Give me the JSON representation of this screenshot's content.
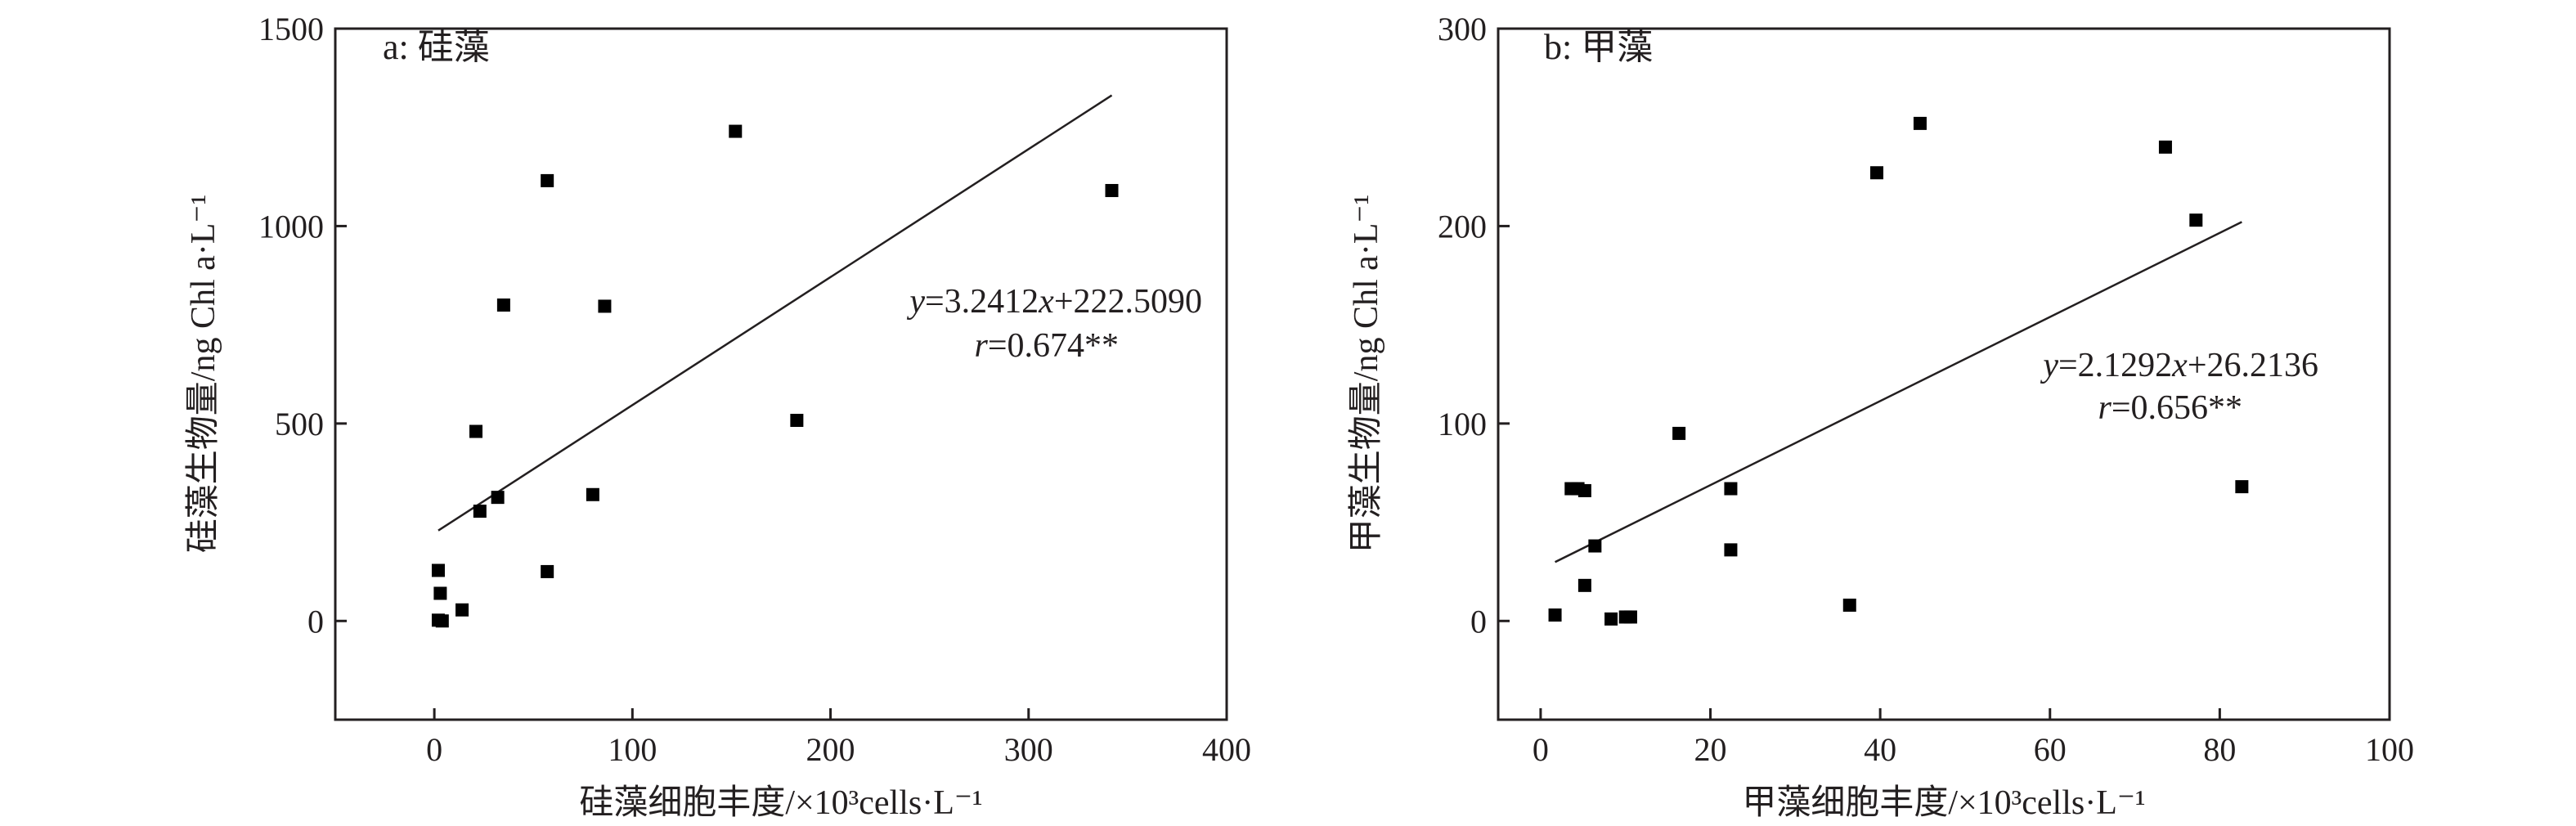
{
  "chart_data": [
    {
      "type": "scatter",
      "title": "a: 硅藻",
      "xlabel": "硅藻细胞丰度/×10³cells·L⁻¹",
      "ylabel": "硅藻生物量/ng Chl a·L⁻¹",
      "xlim": [
        -50,
        400
      ],
      "ylim": [
        -250,
        1500
      ],
      "xticks": [
        0,
        100,
        200,
        300,
        400
      ],
      "yticks": [
        0,
        500,
        1000,
        1500
      ],
      "grid": false,
      "points": [
        {
          "x": 2,
          "y": 128
        },
        {
          "x": 3,
          "y": 70
        },
        {
          "x": 2,
          "y": 2
        },
        {
          "x": 4,
          "y": 0
        },
        {
          "x": 14,
          "y": 28
        },
        {
          "x": 21,
          "y": 480
        },
        {
          "x": 23,
          "y": 278
        },
        {
          "x": 32,
          "y": 313
        },
        {
          "x": 35,
          "y": 800
        },
        {
          "x": 57,
          "y": 125
        },
        {
          "x": 57,
          "y": 1115
        },
        {
          "x": 80,
          "y": 320
        },
        {
          "x": 86,
          "y": 797
        },
        {
          "x": 152,
          "y": 1240
        },
        {
          "x": 183,
          "y": 508
        },
        {
          "x": 342,
          "y": 1090
        }
      ],
      "fit": {
        "slope": 3.2412,
        "intercept": 222.509,
        "x_range": [
          2,
          342
        ]
      },
      "annotations": [
        "y=3.2412x+222.5090",
        "r=0.674**"
      ]
    },
    {
      "type": "scatter",
      "title": "b: 甲藻",
      "xlabel": "甲藻细胞丰度/×10³cells·L⁻¹",
      "ylabel": "甲藻生物量/ng Chl a·L⁻¹",
      "xlim": [
        -5,
        100
      ],
      "ylim": [
        -50,
        300
      ],
      "xticks": [
        0,
        20,
        40,
        60,
        80,
        100
      ],
      "yticks": [
        0,
        100,
        200,
        300
      ],
      "grid": false,
      "points": [
        {
          "x": 1.7,
          "y": 3
        },
        {
          "x": 3.6,
          "y": 67
        },
        {
          "x": 4.4,
          "y": 67
        },
        {
          "x": 5.2,
          "y": 66
        },
        {
          "x": 5.2,
          "y": 18
        },
        {
          "x": 6.4,
          "y": 38
        },
        {
          "x": 8.3,
          "y": 1
        },
        {
          "x": 10.0,
          "y": 2
        },
        {
          "x": 10.6,
          "y": 2
        },
        {
          "x": 16.3,
          "y": 95
        },
        {
          "x": 22.4,
          "y": 67
        },
        {
          "x": 22.4,
          "y": 36
        },
        {
          "x": 36.4,
          "y": 8
        },
        {
          "x": 39.6,
          "y": 227
        },
        {
          "x": 44.7,
          "y": 252
        },
        {
          "x": 73.6,
          "y": 240
        },
        {
          "x": 77.2,
          "y": 203
        },
        {
          "x": 82.6,
          "y": 68
        }
      ],
      "fit": {
        "slope": 2.1292,
        "intercept": 26.2136,
        "x_range": [
          1.7,
          82.6
        ]
      },
      "annotations": [
        "y=2.1292x+26.2136",
        "r=0.656**"
      ]
    }
  ]
}
